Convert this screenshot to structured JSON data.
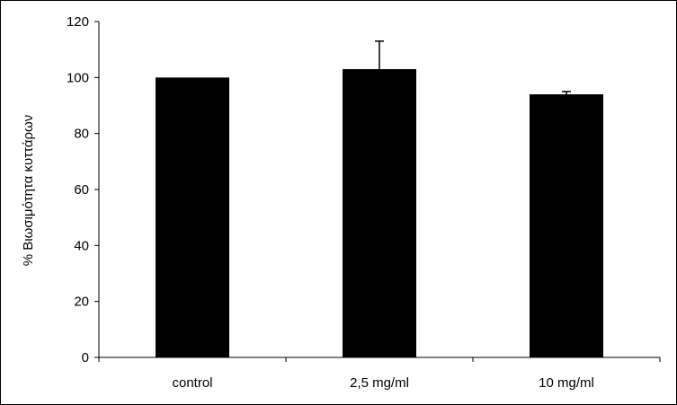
{
  "chart_data": {
    "type": "bar",
    "title": "",
    "xlabel": "",
    "ylabel": "% Βιωσιμότητα κυττάρων",
    "categories": [
      "control",
      "2,5 mg/ml",
      "10 mg/ml"
    ],
    "values": [
      100,
      103,
      94
    ],
    "error_up": [
      0,
      10,
      1
    ],
    "ylim": [
      0,
      120
    ],
    "yticks": [
      "0",
      "20",
      "40",
      "60",
      "80",
      "100",
      "120"
    ],
    "grid": false,
    "legend": "none",
    "bar_color": "#000000"
  }
}
